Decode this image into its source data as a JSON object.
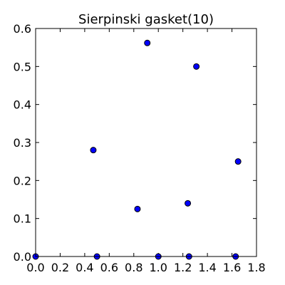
{
  "chart_data": {
    "type": "scatter",
    "title": "Sierpinski gasket(10)",
    "xlabel": "",
    "ylabel": "",
    "xlim": [
      0.0,
      1.8
    ],
    "ylim": [
      0.0,
      0.6
    ],
    "xticks": [
      "0.0",
      "0.2",
      "0.4",
      "0.6",
      "0.8",
      "1.0",
      "1.2",
      "1.4",
      "1.6",
      "1.8"
    ],
    "yticks": [
      "0.0",
      "0.1",
      "0.2",
      "0.3",
      "0.4",
      "0.5",
      "0.6"
    ],
    "grid": false,
    "marker_color": "#0000ff",
    "marker_edge_color": "#000000",
    "points": [
      {
        "x": 0.0,
        "y": 0.0
      },
      {
        "x": 0.5,
        "y": 0.0
      },
      {
        "x": 1.0,
        "y": 0.0
      },
      {
        "x": 1.25,
        "y": 0.0
      },
      {
        "x": 1.63,
        "y": 0.0
      },
      {
        "x": 0.47,
        "y": 0.28
      },
      {
        "x": 0.83,
        "y": 0.125
      },
      {
        "x": 0.91,
        "y": 0.562
      },
      {
        "x": 1.24,
        "y": 0.14
      },
      {
        "x": 1.31,
        "y": 0.5
      },
      {
        "x": 1.65,
        "y": 0.25
      }
    ]
  }
}
